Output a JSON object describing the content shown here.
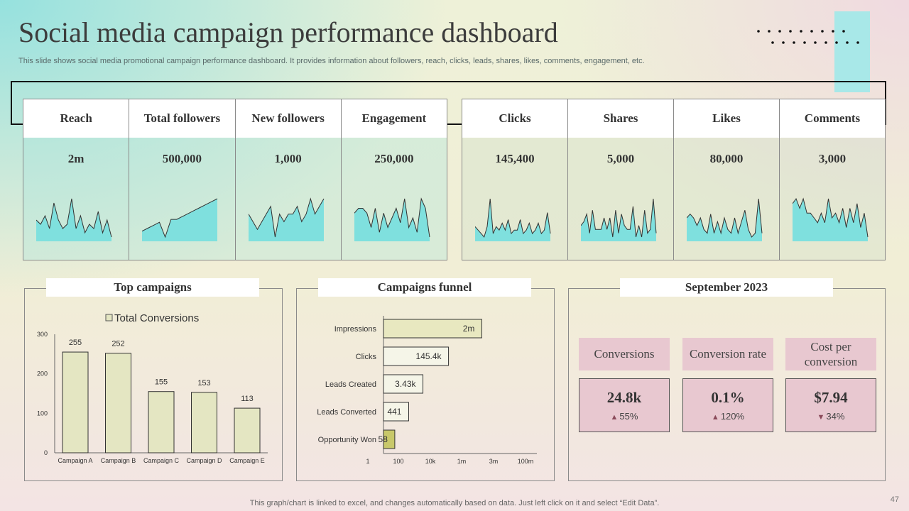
{
  "title": "Social media campaign performance dashboard",
  "subtitle": "This slide shows social media promotional campaign performance dashboard. It provides information about followers, reach, clicks, leads, shares, likes, comments, engagement, etc.",
  "metrics_left": [
    {
      "label": "Reach",
      "value": "2m",
      "spark": [
        5,
        4,
        6,
        3,
        9,
        5,
        3,
        4,
        10,
        3,
        6,
        2,
        4,
        3,
        7,
        2,
        5,
        1
      ]
    },
    {
      "label": "Total followers",
      "value": "500,000",
      "spark": [
        3,
        4,
        5,
        6,
        1,
        7,
        7,
        8,
        9,
        10,
        11,
        12,
        13,
        14
      ]
    },
    {
      "label": "New followers",
      "value": "1,000",
      "spark": [
        9,
        8,
        7,
        8,
        9,
        10,
        6,
        9,
        8,
        9,
        9,
        10,
        8,
        9,
        11,
        9,
        10,
        11
      ]
    },
    {
      "label": "Engagement",
      "value": "250,000",
      "spark": [
        6,
        7,
        7,
        6,
        3,
        7,
        2,
        6,
        3,
        5,
        7,
        4,
        9,
        3,
        5,
        2,
        9,
        7,
        1
      ]
    }
  ],
  "metrics_right": [
    {
      "label": "Clicks",
      "value": "145,400",
      "spark": [
        3,
        2,
        1,
        0,
        3,
        11,
        1,
        3,
        2,
        4,
        2,
        5,
        1,
        2,
        2,
        5,
        1,
        2,
        4,
        1,
        2,
        4,
        1,
        2,
        7,
        1
      ]
    },
    {
      "label": "Shares",
      "value": "5,000",
      "spark": [
        3,
        4,
        6,
        1,
        7,
        2,
        2,
        2,
        5,
        2,
        5,
        0,
        7,
        1,
        6,
        3,
        2,
        2,
        8,
        0,
        3,
        0,
        7,
        1,
        2,
        10,
        1
      ]
    },
    {
      "label": "Likes",
      "value": "80,000",
      "spark": [
        5,
        6,
        5,
        3,
        5,
        2,
        1,
        6,
        1,
        4,
        1,
        5,
        2,
        1,
        5,
        1,
        4,
        7,
        2,
        0,
        1,
        10,
        1
      ]
    },
    {
      "label": "Comments",
      "value": "3,000",
      "spark": [
        7,
        8,
        6,
        8,
        5,
        5,
        4,
        3,
        5,
        3,
        8,
        4,
        5,
        3,
        6,
        2,
        6,
        3,
        7,
        2,
        5,
        0
      ]
    }
  ],
  "cards": {
    "top_title": "Top campaigns",
    "funnel_title": "Campaigns funnel",
    "sept_title": "September 2023"
  },
  "chart_data": [
    {
      "type": "bar",
      "title": "Top campaigns",
      "legend": "Total Conversions",
      "categories": [
        "Campaign A",
        "Campaign B",
        "Campaign C",
        "Campaign D",
        "Campaign E"
      ],
      "values": [
        255,
        252,
        155,
        153,
        113
      ],
      "ylim": [
        0,
        300
      ],
      "yticks": [
        0,
        100,
        200,
        300
      ],
      "color": "#e4e6c2"
    },
    {
      "type": "bar",
      "orientation": "horizontal",
      "scale": "log",
      "title": "Campaigns funnel",
      "categories": [
        "Impressions",
        "Clicks",
        "Leads Created",
        "Leads Converted",
        "Opportunity Won"
      ],
      "values": [
        2000000,
        145400,
        3430,
        441,
        58
      ],
      "value_labels": [
        "2m",
        "145.4k",
        "3.43k",
        "441",
        "58"
      ],
      "xticks": [
        1,
        100,
        10000,
        1000000,
        3000000,
        100000000
      ],
      "xtick_labels": [
        "1",
        "100",
        "10k",
        "1m",
        "3m",
        "100m"
      ],
      "colors": [
        "#e8e8c0",
        "#f5f5e8",
        "#f5f5e8",
        "#f5f5e8",
        "#c8c86a"
      ]
    }
  ],
  "kpis": [
    {
      "label": "Conversions",
      "value": "24.8k",
      "change": "55%",
      "direction": "up"
    },
    {
      "label": "Conversion rate",
      "value": "0.1%",
      "change": "120%",
      "direction": "up"
    },
    {
      "label": "Cost per conversion",
      "value": "$7.94",
      "change": "34%",
      "direction": "down"
    }
  ],
  "footer": "This graph/chart is linked to excel,  and changes automatically based on data. Just left click on it and select “Edit Data”.",
  "page_number": "47",
  "colors": {
    "spark_fill": "#7fe0de",
    "accent": "#a8e8e8",
    "kpi_bg": "#e8c8d0"
  }
}
